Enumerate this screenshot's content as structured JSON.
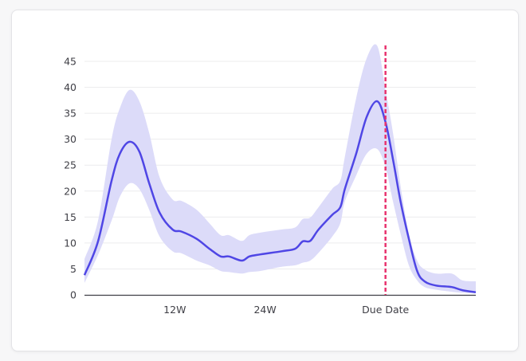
{
  "chart_data": {
    "type": "area",
    "title": "",
    "xlabel": "",
    "ylabel": "",
    "xlim": [
      0,
      52
    ],
    "ylim": [
      0,
      45
    ],
    "grid": true,
    "y_ticks": [
      0,
      5,
      10,
      15,
      20,
      25,
      30,
      35,
      40,
      45
    ],
    "x_ticks": [
      {
        "value": 12,
        "label": "12W"
      },
      {
        "value": 24,
        "label": "24W"
      },
      {
        "value": 40,
        "label": "Due Date"
      }
    ],
    "marker": {
      "value": 40,
      "label": "Due Date",
      "style": "dashed"
    },
    "x": [
      0,
      1.8,
      3.6,
      4.7,
      6,
      7.3,
      8.6,
      10,
      11.7,
      12.9,
      14.9,
      16.6,
      18.1,
      19.2,
      20.9,
      21.9,
      23.4,
      26.2,
      28,
      29,
      30,
      31.1,
      32.9,
      34,
      34.6,
      36.1,
      37.5,
      38.9,
      40,
      41,
      42,
      43.1,
      44.2,
      45.2,
      46.7,
      48.8,
      50.2,
      52
    ],
    "series": [
      {
        "name": "mean",
        "values": [
          3.8,
          10.3,
          22,
          27.2,
          29.5,
          27.6,
          21.5,
          15.8,
          12.6,
          12.2,
          10.8,
          8.9,
          7.4,
          7.4,
          6.6,
          7.4,
          7.8,
          8.4,
          8.9,
          10.3,
          10.4,
          12.6,
          15.4,
          16.9,
          20.4,
          27.2,
          34.3,
          37.3,
          33.3,
          26.1,
          18,
          10.8,
          4.6,
          2.6,
          1.8,
          1.5,
          0.9,
          0.5
        ]
      },
      {
        "name": "upper",
        "values": [
          6.9,
          14.3,
          30,
          36,
          39.5,
          37.3,
          31.2,
          22.6,
          18.4,
          18.1,
          16.4,
          13.8,
          11.5,
          11.5,
          10.4,
          11.5,
          12,
          12.6,
          13,
          14.6,
          14.9,
          16.9,
          20.4,
          22,
          26.6,
          37.9,
          45.6,
          48,
          39.5,
          31.2,
          21,
          11.8,
          6.6,
          4.9,
          4.1,
          4.1,
          2.8,
          2.6
        ]
      },
      {
        "name": "lower",
        "values": [
          2.3,
          7.7,
          14.3,
          18.9,
          21.5,
          20.4,
          16.4,
          11.2,
          8.4,
          8,
          6.6,
          5.7,
          4.6,
          4.4,
          4.1,
          4.4,
          4.6,
          5.4,
          5.7,
          6.2,
          6.6,
          8.1,
          11.2,
          13.8,
          18,
          23,
          27.2,
          28.1,
          24.6,
          18,
          11.8,
          5.7,
          2.8,
          1.5,
          1,
          0.6,
          0.4,
          0.3
        ]
      }
    ],
    "colors": {
      "line": "#4f46e5",
      "band": "#dcdbf9",
      "marker": "#e8336e",
      "grid": "#ececee",
      "axis": "#3f3f46"
    }
  }
}
